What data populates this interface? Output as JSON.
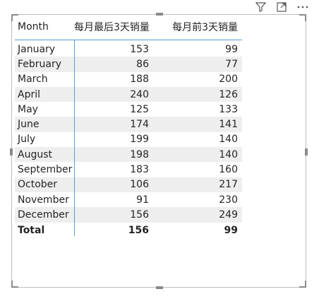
{
  "header_icons": [
    "filter-icon",
    "focus-mode-icon",
    "more-options-icon"
  ],
  "table": {
    "columns": [
      "Month",
      "每月最后3天销量",
      "每月前3天销量"
    ],
    "rows": [
      [
        "January",
        "153",
        "99"
      ],
      [
        "February",
        "86",
        "77"
      ],
      [
        "March",
        "188",
        "200"
      ],
      [
        "April",
        "240",
        "126"
      ],
      [
        "May",
        "125",
        "133"
      ],
      [
        "June",
        "174",
        "141"
      ],
      [
        "July",
        "199",
        "140"
      ],
      [
        "August",
        "198",
        "140"
      ],
      [
        "September",
        "183",
        "160"
      ],
      [
        "October",
        "106",
        "217"
      ],
      [
        "November",
        "91",
        "230"
      ],
      [
        "December",
        "156",
        "249"
      ]
    ],
    "total": [
      "Total",
      "156",
      "99"
    ]
  },
  "colors": {
    "accent": "#5b9bd5",
    "row_shade": "#eeeeee",
    "frame": "#bdbdbd"
  }
}
